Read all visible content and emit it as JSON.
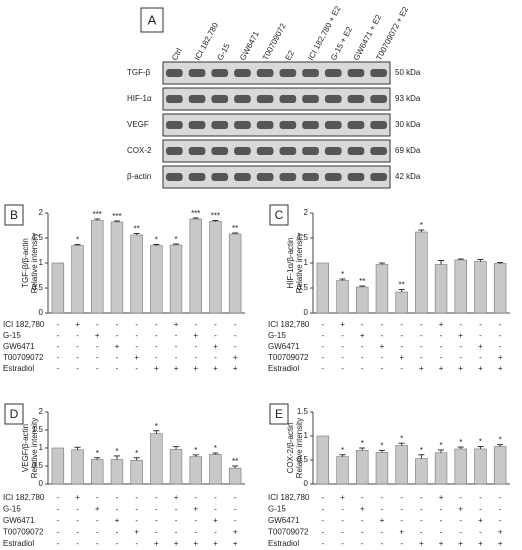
{
  "blot": {
    "panel": "A",
    "lanes": [
      "Ctrl",
      "ICI 182,780",
      "G-15",
      "GW6471",
      "T00709072",
      "E2",
      "ICI 182,780 + E2",
      "G-15 + E2",
      "GW6471 + E2",
      "T00709072 + E2"
    ],
    "proteins": [
      {
        "name": "TGF-β",
        "size": "50 kDa"
      },
      {
        "name": "HIF-1α",
        "size": "93 kDa"
      },
      {
        "name": "VEGF",
        "size": "30 kDa"
      },
      {
        "name": "COX-2",
        "size": "69 kDa"
      },
      {
        "name": "β-actin",
        "size": "42 kDa"
      }
    ]
  },
  "chart_data": [
    {
      "type": "bar",
      "panel": "B",
      "ylabel": [
        "TGF-β/β-actin",
        "Relative intensity"
      ],
      "color": "#c8c8c8",
      "ylim": [
        0,
        2
      ],
      "yticks": [
        0,
        0.5,
        1,
        1.5,
        2
      ],
      "values": [
        1,
        1.35,
        1.85,
        1.82,
        1.56,
        1.35,
        1.36,
        1.88,
        1.83,
        1.58
      ],
      "errors": [
        null,
        0.02,
        0.03,
        0.02,
        0.03,
        0.02,
        0.02,
        0.02,
        0.02,
        0.02
      ],
      "annotations": [
        null,
        "*",
        "***",
        "***",
        "**",
        "*",
        "*",
        "***",
        "***",
        "**"
      ],
      "treatments": [
        {
          "name": "ICI 182,780",
          "signs": [
            "-",
            "+",
            "-",
            "-",
            "-",
            "-",
            "+",
            "-",
            "-",
            "-"
          ]
        },
        {
          "name": "G-15",
          "signs": [
            "-",
            "-",
            "+",
            "-",
            "-",
            "-",
            "-",
            "+",
            "-",
            "-"
          ]
        },
        {
          "name": "GW6471",
          "signs": [
            "-",
            "-",
            "-",
            "+",
            "-",
            "-",
            "-",
            "-",
            "+",
            "-"
          ]
        },
        {
          "name": "T00709072",
          "signs": [
            "-",
            "-",
            "-",
            "-",
            "+",
            "-",
            "-",
            "-",
            "-",
            "+"
          ]
        },
        {
          "name": "Estradiol",
          "signs": [
            "-",
            "-",
            "-",
            "-",
            "-",
            "+",
            "+",
            "+",
            "+",
            "+"
          ]
        }
      ]
    },
    {
      "type": "bar",
      "panel": "C",
      "ylabel": [
        "HIF-1α/β-actin",
        "Relative intensity"
      ],
      "color": "#c8c8c8",
      "ylim": [
        0,
        2
      ],
      "yticks": [
        0,
        0.5,
        1,
        1.5,
        2
      ],
      "values": [
        1,
        0.65,
        0.52,
        0.97,
        0.42,
        1.62,
        0.97,
        1.06,
        1.03,
        0.99
      ],
      "errors": [
        null,
        0.03,
        0.02,
        0.03,
        0.05,
        0.04,
        0.08,
        0.02,
        0.04,
        0.02
      ],
      "annotations": [
        null,
        "*",
        "**",
        null,
        "**",
        "*",
        null,
        null,
        null,
        null
      ],
      "treatments": [
        {
          "name": "ICI 182,780",
          "signs": [
            "-",
            "+",
            "-",
            "-",
            "-",
            "-",
            "+",
            "-",
            "-",
            "-"
          ]
        },
        {
          "name": "G-15",
          "signs": [
            "-",
            "-",
            "+",
            "-",
            "-",
            "-",
            "-",
            "+",
            "-",
            "-"
          ]
        },
        {
          "name": "GW6471",
          "signs": [
            "-",
            "-",
            "-",
            "+",
            "-",
            "-",
            "-",
            "-",
            "+",
            "-"
          ]
        },
        {
          "name": "T00709072",
          "signs": [
            "-",
            "-",
            "-",
            "-",
            "+",
            "-",
            "-",
            "-",
            "-",
            "+"
          ]
        },
        {
          "name": "Estradiol",
          "signs": [
            "-",
            "-",
            "-",
            "-",
            "-",
            "+",
            "+",
            "+",
            "+",
            "+"
          ]
        }
      ]
    },
    {
      "type": "bar",
      "panel": "D",
      "ylabel": [
        "VEGF/β-actin",
        "Relative intensity"
      ],
      "color": "#c8c8c8",
      "ylim": [
        0,
        2
      ],
      "yticks": [
        0,
        0.5,
        1,
        1.5,
        2
      ],
      "values": [
        1,
        0.95,
        0.68,
        0.68,
        0.66,
        1.4,
        0.96,
        0.76,
        0.82,
        0.44
      ],
      "errors": [
        null,
        0.07,
        0.05,
        0.1,
        0.07,
        0.08,
        0.08,
        0.05,
        0.04,
        0.06
      ],
      "annotations": [
        null,
        null,
        "*",
        "*",
        "*",
        "*",
        null,
        "*",
        "*",
        "**"
      ],
      "treatments": [
        {
          "name": "ICI 182,780",
          "signs": [
            "-",
            "+",
            "-",
            "-",
            "-",
            "-",
            "+",
            "-",
            "-",
            "-"
          ]
        },
        {
          "name": "G-15",
          "signs": [
            "-",
            "-",
            "+",
            "-",
            "-",
            "-",
            "-",
            "+",
            "-",
            "-"
          ]
        },
        {
          "name": "GW6471",
          "signs": [
            "-",
            "-",
            "-",
            "+",
            "-",
            "-",
            "-",
            "-",
            "+",
            "-"
          ]
        },
        {
          "name": "T00709072",
          "signs": [
            "-",
            "-",
            "-",
            "-",
            "+",
            "-",
            "-",
            "-",
            "-",
            "+"
          ]
        },
        {
          "name": "Estradiol",
          "signs": [
            "-",
            "-",
            "-",
            "-",
            "-",
            "+",
            "+",
            "+",
            "+",
            "+"
          ]
        }
      ]
    },
    {
      "type": "bar",
      "panel": "E",
      "ylabel": [
        "COX-2/β-actin",
        "Relative intensity"
      ],
      "color": "#c8c8c8",
      "ylim": [
        0,
        1.5
      ],
      "yticks": [
        0,
        0.5,
        1,
        1.5
      ],
      "values": [
        1,
        0.57,
        0.7,
        0.66,
        0.8,
        0.53,
        0.65,
        0.73,
        0.73,
        0.78
      ],
      "errors": [
        null,
        0.04,
        0.05,
        0.04,
        0.05,
        0.08,
        0.06,
        0.04,
        0.05,
        0.04
      ],
      "annotations": [
        null,
        "*",
        "*",
        "*",
        "*",
        "*",
        "*",
        "*",
        "*",
        "*"
      ],
      "treatments": [
        {
          "name": "ICI 182,780",
          "signs": [
            "-",
            "+",
            "-",
            "-",
            "-",
            "-",
            "+",
            "-",
            "-",
            "-"
          ]
        },
        {
          "name": "G-15",
          "signs": [
            "-",
            "-",
            "+",
            "-",
            "-",
            "-",
            "-",
            "+",
            "-",
            "-"
          ]
        },
        {
          "name": "GW6471",
          "signs": [
            "-",
            "-",
            "-",
            "+",
            "-",
            "-",
            "-",
            "-",
            "+",
            "-"
          ]
        },
        {
          "name": "T00709072",
          "signs": [
            "-",
            "-",
            "-",
            "-",
            "+",
            "-",
            "-",
            "-",
            "-",
            "+"
          ]
        },
        {
          "name": "Estradiol",
          "signs": [
            "-",
            "-",
            "-",
            "-",
            "-",
            "+",
            "+",
            "+",
            "+",
            "+"
          ]
        }
      ]
    }
  ]
}
